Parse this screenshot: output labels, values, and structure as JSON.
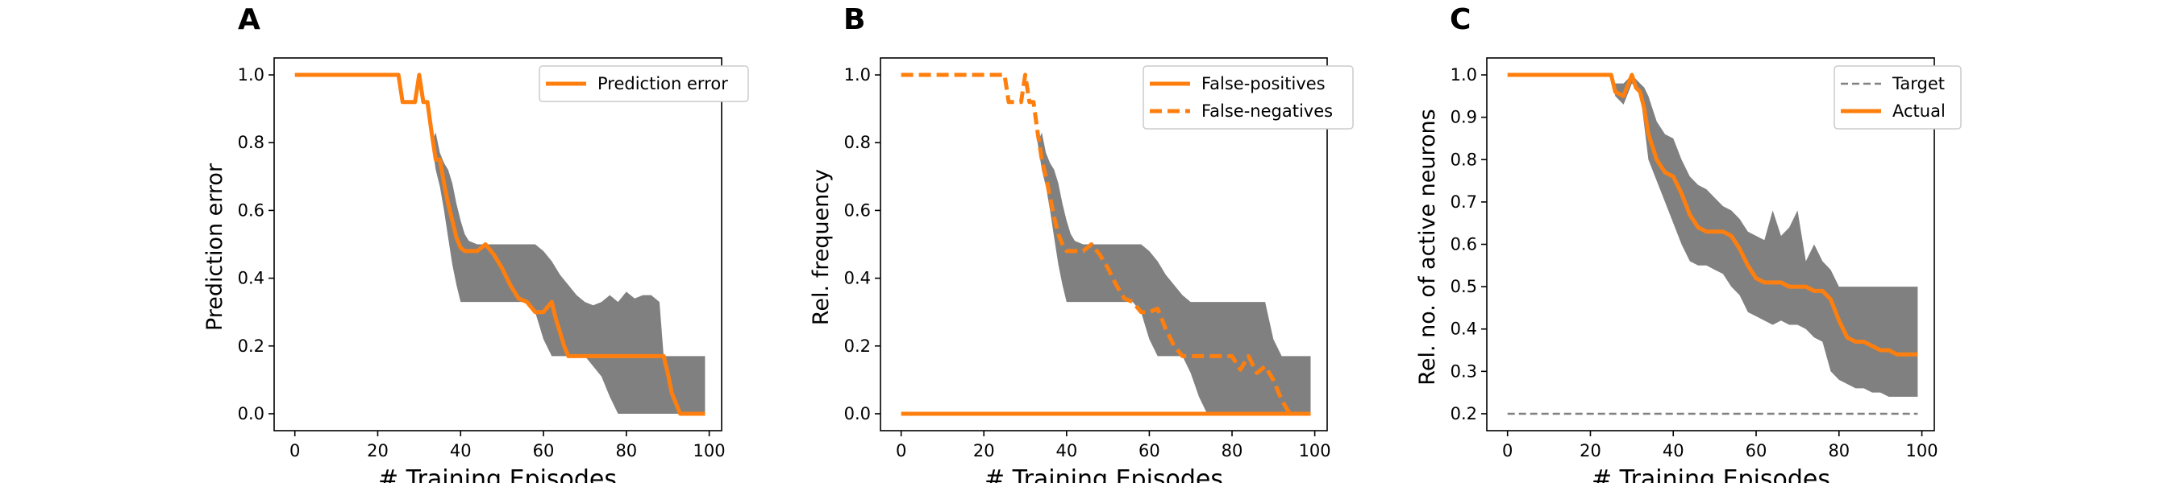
{
  "colors": {
    "orange": "#ff7f0e",
    "band": "#808080",
    "target": "#808080",
    "axis": "#000000"
  },
  "chart_data": [
    {
      "panel_label": "A",
      "type": "line",
      "xlabel": "# Training Episodes",
      "ylabel": "Prediction error",
      "xlim": [
        -5,
        103
      ],
      "ylim": [
        -0.05,
        1.05
      ],
      "xticks": [
        0,
        20,
        40,
        60,
        80,
        100
      ],
      "xtick_labels": [
        "0",
        "20",
        "40",
        "60",
        "80",
        "100"
      ],
      "yticks": [
        0.0,
        0.2,
        0.4,
        0.6,
        0.8,
        1.0
      ],
      "ytick_labels": [
        "0.0",
        "0.2",
        "0.4",
        "0.6",
        "0.8",
        "1.0"
      ],
      "legend_position": "top-right",
      "grid": false,
      "band": {
        "x": [
          0,
          25,
          26,
          29,
          30,
          31,
          32,
          33,
          34,
          35,
          36,
          37,
          38,
          39,
          40,
          41,
          42,
          44,
          46,
          48,
          50,
          52,
          54,
          56,
          58,
          60,
          62,
          64,
          66,
          68,
          70,
          72,
          74,
          76,
          78,
          80,
          82,
          84,
          86,
          88,
          89,
          90,
          92,
          94,
          96,
          98,
          99
        ],
        "upper": [
          1.0,
          1.0,
          0.92,
          0.92,
          1.0,
          0.92,
          0.92,
          0.8,
          0.83,
          0.77,
          0.74,
          0.72,
          0.68,
          0.62,
          0.57,
          0.53,
          0.51,
          0.5,
          0.5,
          0.5,
          0.5,
          0.5,
          0.5,
          0.5,
          0.5,
          0.48,
          0.45,
          0.41,
          0.38,
          0.35,
          0.33,
          0.32,
          0.33,
          0.35,
          0.33,
          0.36,
          0.34,
          0.35,
          0.35,
          0.33,
          0.17,
          0.17,
          0.17,
          0.17,
          0.17,
          0.17,
          0.17
        ],
        "lower": [
          1.0,
          1.0,
          0.92,
          0.92,
          1.0,
          0.92,
          0.92,
          0.8,
          0.72,
          0.67,
          0.6,
          0.52,
          0.44,
          0.38,
          0.33,
          0.33,
          0.33,
          0.33,
          0.33,
          0.33,
          0.33,
          0.33,
          0.33,
          0.33,
          0.3,
          0.22,
          0.17,
          0.17,
          0.17,
          0.17,
          0.17,
          0.14,
          0.11,
          0.05,
          0.0,
          0.0,
          0.0,
          0.0,
          0.0,
          0.0,
          0.0,
          0.0,
          0.0,
          0.0,
          0.0,
          0.0,
          0.0
        ]
      },
      "series": [
        {
          "name": "Prediction error",
          "style": "solid",
          "x": [
            0,
            25,
            26,
            29,
            30,
            31,
            32,
            33,
            34,
            35,
            36,
            37,
            38,
            39,
            40,
            41,
            42,
            44,
            46,
            48,
            50,
            52,
            54,
            56,
            58,
            60,
            62,
            63,
            64,
            65,
            66,
            67,
            70,
            75,
            80,
            85,
            89,
            90,
            91,
            92,
            93,
            95,
            99
          ],
          "y": [
            1.0,
            1.0,
            0.92,
            0.92,
            1.0,
            0.92,
            0.92,
            0.83,
            0.75,
            0.75,
            0.68,
            0.62,
            0.57,
            0.52,
            0.49,
            0.48,
            0.48,
            0.48,
            0.5,
            0.47,
            0.43,
            0.38,
            0.34,
            0.33,
            0.3,
            0.3,
            0.33,
            0.28,
            0.24,
            0.2,
            0.17,
            0.17,
            0.17,
            0.17,
            0.17,
            0.17,
            0.17,
            0.12,
            0.06,
            0.03,
            0.0,
            0.0,
            0.0
          ]
        }
      ]
    },
    {
      "panel_label": "B",
      "type": "line",
      "xlabel": "# Training Episodes",
      "ylabel": "Rel. frequency",
      "xlim": [
        -5,
        103
      ],
      "ylim": [
        -0.05,
        1.05
      ],
      "xticks": [
        0,
        20,
        40,
        60,
        80,
        100
      ],
      "xtick_labels": [
        "0",
        "20",
        "40",
        "60",
        "80",
        "100"
      ],
      "yticks": [
        0.0,
        0.2,
        0.4,
        0.6,
        0.8,
        1.0
      ],
      "ytick_labels": [
        "0.0",
        "0.2",
        "0.4",
        "0.6",
        "0.8",
        "1.0"
      ],
      "legend_position": "top-right",
      "grid": false,
      "band": {
        "x": [
          0,
          25,
          26,
          29,
          30,
          31,
          32,
          33,
          34,
          35,
          36,
          37,
          38,
          39,
          40,
          41,
          42,
          44,
          46,
          48,
          50,
          52,
          54,
          56,
          58,
          60,
          62,
          64,
          66,
          68,
          70,
          72,
          74,
          76,
          78,
          80,
          82,
          84,
          86,
          88,
          90,
          92,
          94,
          96,
          98,
          99
        ],
        "upper": [
          1.0,
          1.0,
          0.92,
          0.92,
          1.0,
          0.92,
          0.92,
          0.8,
          0.83,
          0.77,
          0.74,
          0.72,
          0.68,
          0.62,
          0.57,
          0.53,
          0.51,
          0.5,
          0.5,
          0.5,
          0.5,
          0.5,
          0.5,
          0.5,
          0.5,
          0.48,
          0.45,
          0.41,
          0.38,
          0.35,
          0.33,
          0.33,
          0.33,
          0.33,
          0.33,
          0.33,
          0.33,
          0.33,
          0.33,
          0.33,
          0.22,
          0.17,
          0.17,
          0.17,
          0.17,
          0.17
        ],
        "lower": [
          1.0,
          1.0,
          0.92,
          0.92,
          1.0,
          0.92,
          0.92,
          0.8,
          0.72,
          0.67,
          0.6,
          0.52,
          0.44,
          0.38,
          0.33,
          0.33,
          0.33,
          0.33,
          0.33,
          0.33,
          0.33,
          0.33,
          0.33,
          0.33,
          0.3,
          0.22,
          0.17,
          0.17,
          0.17,
          0.17,
          0.12,
          0.05,
          0.0,
          0.0,
          0.0,
          0.0,
          0.0,
          0.0,
          0.0,
          0.0,
          0.0,
          0.0,
          0.0,
          0.0,
          0.0,
          0.0
        ]
      },
      "series": [
        {
          "name": "False-positives",
          "style": "solid",
          "x": [
            0,
            99
          ],
          "y": [
            0.0,
            0.0
          ]
        },
        {
          "name": "False-negatives",
          "style": "dashed",
          "x": [
            0,
            25,
            26,
            29,
            30,
            31,
            32,
            33,
            34,
            35,
            36,
            37,
            38,
            39,
            40,
            41,
            42,
            44,
            46,
            48,
            50,
            52,
            54,
            56,
            58,
            60,
            62,
            64,
            66,
            68,
            70,
            75,
            80,
            82,
            84,
            86,
            88,
            90,
            92,
            94,
            99
          ],
          "y": [
            1.0,
            1.0,
            0.92,
            0.92,
            1.0,
            0.92,
            0.92,
            0.83,
            0.75,
            0.7,
            0.64,
            0.58,
            0.53,
            0.5,
            0.48,
            0.48,
            0.48,
            0.48,
            0.5,
            0.47,
            0.43,
            0.38,
            0.34,
            0.33,
            0.3,
            0.3,
            0.31,
            0.25,
            0.2,
            0.17,
            0.17,
            0.17,
            0.17,
            0.13,
            0.17,
            0.12,
            0.14,
            0.1,
            0.04,
            0.0,
            0.0
          ]
        }
      ]
    },
    {
      "panel_label": "C",
      "type": "line",
      "xlabel": "# Training Episodes",
      "ylabel": "Rel. no. of active neurons",
      "xlim": [
        -5,
        103
      ],
      "ylim": [
        0.16,
        1.04
      ],
      "xticks": [
        0,
        20,
        40,
        60,
        80,
        100
      ],
      "xtick_labels": [
        "0",
        "20",
        "40",
        "60",
        "80",
        "100"
      ],
      "yticks": [
        0.2,
        0.3,
        0.4,
        0.5,
        0.6,
        0.7,
        0.8,
        0.9,
        1.0
      ],
      "ytick_labels": [
        "0.2",
        "0.3",
        "0.4",
        "0.5",
        "0.6",
        "0.7",
        "0.8",
        "0.9",
        "1.0"
      ],
      "legend_position": "top-right",
      "grid": false,
      "band": {
        "x": [
          0,
          25,
          26,
          28,
          30,
          32,
          33,
          34,
          36,
          38,
          40,
          42,
          44,
          46,
          48,
          50,
          52,
          54,
          56,
          58,
          60,
          62,
          64,
          66,
          68,
          70,
          72,
          74,
          76,
          78,
          80,
          82,
          84,
          86,
          88,
          90,
          92,
          94,
          96,
          98,
          99
        ],
        "upper": [
          1.0,
          1.0,
          0.98,
          0.98,
          1.0,
          0.98,
          0.97,
          0.95,
          0.89,
          0.86,
          0.85,
          0.8,
          0.76,
          0.74,
          0.73,
          0.71,
          0.69,
          0.68,
          0.66,
          0.63,
          0.62,
          0.61,
          0.68,
          0.62,
          0.64,
          0.68,
          0.56,
          0.6,
          0.56,
          0.54,
          0.5,
          0.5,
          0.5,
          0.5,
          0.5,
          0.5,
          0.5,
          0.5,
          0.5,
          0.5,
          0.5
        ],
        "lower": [
          1.0,
          1.0,
          0.95,
          0.93,
          0.98,
          0.96,
          0.88,
          0.8,
          0.75,
          0.7,
          0.65,
          0.6,
          0.56,
          0.55,
          0.55,
          0.54,
          0.53,
          0.5,
          0.48,
          0.44,
          0.43,
          0.42,
          0.41,
          0.42,
          0.41,
          0.41,
          0.4,
          0.38,
          0.37,
          0.3,
          0.28,
          0.27,
          0.26,
          0.26,
          0.25,
          0.25,
          0.24,
          0.24,
          0.24,
          0.24,
          0.24
        ]
      },
      "series": [
        {
          "name": "Target",
          "style": "dashed",
          "x": [
            0,
            99
          ],
          "y": [
            0.2,
            0.2
          ]
        },
        {
          "name": "Actual",
          "style": "solid",
          "x": [
            0,
            25,
            26,
            28,
            30,
            31,
            32,
            33,
            34,
            35,
            36,
            38,
            40,
            42,
            44,
            46,
            48,
            50,
            52,
            54,
            56,
            58,
            60,
            62,
            64,
            66,
            68,
            70,
            72,
            74,
            76,
            78,
            80,
            82,
            84,
            86,
            88,
            90,
            92,
            94,
            96,
            99
          ],
          "y": [
            1.0,
            1.0,
            0.96,
            0.95,
            1.0,
            0.97,
            0.96,
            0.92,
            0.86,
            0.83,
            0.8,
            0.77,
            0.76,
            0.72,
            0.67,
            0.64,
            0.63,
            0.63,
            0.63,
            0.62,
            0.59,
            0.55,
            0.52,
            0.51,
            0.51,
            0.51,
            0.5,
            0.5,
            0.5,
            0.49,
            0.49,
            0.47,
            0.42,
            0.38,
            0.37,
            0.37,
            0.36,
            0.35,
            0.35,
            0.34,
            0.34,
            0.34
          ]
        }
      ]
    }
  ]
}
